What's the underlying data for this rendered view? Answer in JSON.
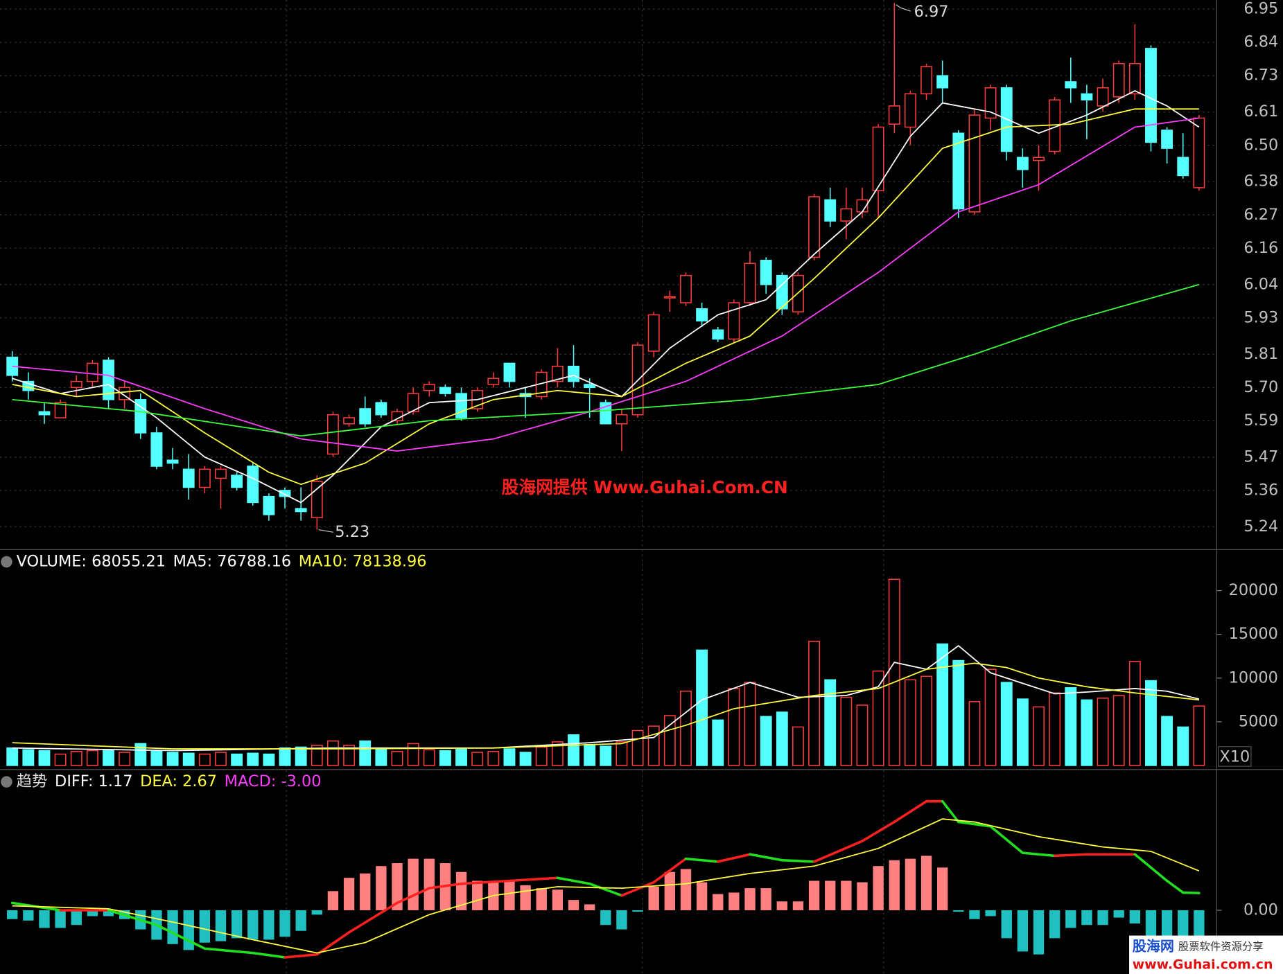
{
  "chart_data": [
    {
      "type": "candlestick",
      "open": [
        5.8,
        5.72,
        5.62,
        5.6,
        5.7,
        5.72,
        5.79,
        5.66,
        5.66,
        5.55,
        5.46,
        5.43,
        5.37,
        5.4,
        5.41,
        5.44,
        5.34,
        5.36,
        5.3,
        5.27,
        5.48,
        5.58,
        5.63,
        5.65,
        5.59,
        5.62,
        5.69,
        5.7,
        5.68,
        5.63,
        5.71,
        5.78,
        5.68,
        5.67,
        5.72,
        5.77,
        5.71,
        5.65,
        5.58,
        5.61,
        5.82,
        6.0,
        5.98,
        5.96,
        5.89,
        5.86,
        5.98,
        6.12,
        6.07,
        5.95,
        6.13,
        6.32,
        6.25,
        6.28,
        6.35,
        6.57,
        6.56,
        6.67,
        6.73,
        6.54,
        6.28,
        6.59,
        6.69,
        6.46,
        6.45,
        6.48,
        6.71,
        6.67,
        6.63,
        6.66,
        6.67,
        6.82,
        6.55,
        6.46,
        6.36
      ],
      "close": [
        5.74,
        5.69,
        5.61,
        5.65,
        5.72,
        5.78,
        5.66,
        5.7,
        5.55,
        5.44,
        5.45,
        5.37,
        5.43,
        5.43,
        5.37,
        5.32,
        5.28,
        5.34,
        5.29,
        5.39,
        5.61,
        5.6,
        5.58,
        5.61,
        5.62,
        5.68,
        5.71,
        5.68,
        5.6,
        5.69,
        5.73,
        5.72,
        5.67,
        5.75,
        5.77,
        5.72,
        5.7,
        5.58,
        5.61,
        5.84,
        5.94,
        6.0,
        6.07,
        5.92,
        5.86,
        5.98,
        6.11,
        6.04,
        5.96,
        6.07,
        6.33,
        6.25,
        6.29,
        6.32,
        6.56,
        6.63,
        6.67,
        6.76,
        6.69,
        6.29,
        6.6,
        6.69,
        6.48,
        6.42,
        6.46,
        6.65,
        6.69,
        6.65,
        6.69,
        6.77,
        6.77,
        6.51,
        6.49,
        6.4,
        6.59
      ],
      "high": [
        5.82,
        5.75,
        5.65,
        5.66,
        5.74,
        5.79,
        5.8,
        5.72,
        5.68,
        5.57,
        5.5,
        5.48,
        5.44,
        5.44,
        5.42,
        5.45,
        5.35,
        5.37,
        5.37,
        5.41,
        5.62,
        5.61,
        5.67,
        5.66,
        5.63,
        5.7,
        5.72,
        5.71,
        5.7,
        5.7,
        5.75,
        5.78,
        5.7,
        5.76,
        5.83,
        5.84,
        5.73,
        5.66,
        5.63,
        5.85,
        5.95,
        6.02,
        6.08,
        5.98,
        5.9,
        5.99,
        6.15,
        6.13,
        6.08,
        6.08,
        6.34,
        6.36,
        6.36,
        6.36,
        6.57,
        6.97,
        6.68,
        6.77,
        6.78,
        6.55,
        6.62,
        6.7,
        6.7,
        6.49,
        6.5,
        6.66,
        6.79,
        6.7,
        6.72,
        6.78,
        6.9,
        6.83,
        6.56,
        6.54,
        6.6
      ],
      "low": [
        5.72,
        5.66,
        5.58,
        5.6,
        5.67,
        5.7,
        5.63,
        5.63,
        5.53,
        5.43,
        5.43,
        5.33,
        5.35,
        5.3,
        5.36,
        5.31,
        5.26,
        5.3,
        5.26,
        5.23,
        5.47,
        5.57,
        5.57,
        5.6,
        5.58,
        5.61,
        5.67,
        5.67,
        5.59,
        5.62,
        5.7,
        5.7,
        5.6,
        5.66,
        5.7,
        5.7,
        5.6,
        5.58,
        5.49,
        5.6,
        5.8,
        5.95,
        5.97,
        5.9,
        5.85,
        5.85,
        5.97,
        6.01,
        5.94,
        5.94,
        6.12,
        6.23,
        6.19,
        6.26,
        6.26,
        6.54,
        6.5,
        6.65,
        6.64,
        6.26,
        6.27,
        6.55,
        6.45,
        6.36,
        6.35,
        6.47,
        6.64,
        6.52,
        6.61,
        6.64,
        6.65,
        6.48,
        6.44,
        6.39,
        6.35
      ],
      "up_color": "#ff3c3c",
      "down_color": "#54ffff",
      "ylim": [
        5.17,
        6.98
      ],
      "yticks": [
        6.95,
        6.84,
        6.73,
        6.61,
        {
          "value": 6.5,
          "label": "6.50"
        },
        6.38,
        6.27,
        6.16,
        6.04,
        5.93,
        5.81,
        {
          "value": 5.7,
          "label": "5.70"
        },
        5.59,
        5.47,
        5.36,
        5.24
      ],
      "grid": true,
      "high_label": "6.97",
      "low_label": "5.23",
      "series": [
        {
          "color": "#ffffff",
          "x": [
            0,
            3,
            6,
            9,
            12,
            15,
            18,
            20,
            23,
            26,
            29,
            32,
            35,
            38,
            41,
            44,
            47,
            50,
            53,
            56,
            58,
            61,
            64,
            67,
            70,
            72,
            74
          ],
          "values": [
            5.73,
            5.68,
            5.71,
            5.6,
            5.47,
            5.4,
            5.32,
            5.41,
            5.57,
            5.65,
            5.66,
            5.7,
            5.74,
            5.67,
            5.83,
            5.94,
            5.99,
            6.14,
            6.28,
            6.53,
            6.64,
            6.61,
            6.54,
            6.6,
            6.68,
            6.63,
            6.56
          ]
        },
        {
          "color": "#ffff3c",
          "x": [
            0,
            4,
            8,
            12,
            16,
            18,
            22,
            26,
            30,
            34,
            38,
            42,
            46,
            50,
            54,
            58,
            62,
            66,
            70,
            74
          ],
          "values": [
            5.71,
            5.67,
            5.69,
            5.55,
            5.42,
            5.38,
            5.45,
            5.58,
            5.66,
            5.69,
            5.67,
            5.78,
            5.87,
            6.06,
            6.26,
            6.49,
            6.56,
            6.57,
            6.62,
            6.62
          ]
        },
        {
          "color": "#ff3cff",
          "x": [
            0,
            6,
            12,
            18,
            24,
            30,
            36,
            42,
            48,
            54,
            59,
            64,
            70,
            74
          ],
          "values": [
            5.77,
            5.74,
            5.63,
            5.53,
            5.49,
            5.53,
            5.62,
            5.72,
            5.87,
            6.08,
            6.28,
            6.37,
            6.56,
            6.59
          ]
        },
        {
          "color": "#3cff3c",
          "x": [
            0,
            8,
            18,
            26,
            36,
            46,
            54,
            60,
            66,
            74
          ],
          "values": [
            5.66,
            5.62,
            5.54,
            5.59,
            5.62,
            5.66,
            5.71,
            5.81,
            5.92,
            6.04
          ]
        }
      ],
      "watermark": "股海网提供 Www.Guhai.Com.CN"
    },
    {
      "type": "bar",
      "name": "VOLUME: 68055.21",
      "values": [
        2000,
        1800,
        1700,
        1300,
        1600,
        1700,
        1800,
        1500,
        2500,
        1600,
        1500,
        1400,
        1300,
        1500,
        1300,
        1400,
        1300,
        2000,
        2100,
        2300,
        2800,
        2300,
        2800,
        2000,
        1600,
        2500,
        1800,
        1700,
        1900,
        1500,
        1600,
        1900,
        1500,
        2100,
        2700,
        3500,
        2400,
        2200,
        2700,
        4000,
        4500,
        5700,
        8500,
        13200,
        5200,
        8800,
        9500,
        5600,
        6100,
        4400,
        14200,
        9800,
        7800,
        6900,
        10800,
        21300,
        9800,
        10200,
        13900,
        12000,
        7300,
        11000,
        9500,
        7600,
        6700,
        8300,
        8900,
        7500,
        7700,
        8000,
        11900,
        9700,
        5600,
        4400,
        6800
      ],
      "ylim": [
        0,
        24700
      ],
      "yticks": [
        5000,
        10000,
        15000,
        20000
      ],
      "unit_label": "X10",
      "series": [
        {
          "name": "MA5: 76788.16",
          "color": "#ffffff",
          "x": [
            0,
            10,
            20,
            30,
            36,
            40,
            43,
            46,
            49,
            52,
            54,
            55,
            57,
            59,
            61,
            63,
            65,
            67,
            70,
            72,
            74
          ],
          "values": [
            2000,
            1700,
            2000,
            2000,
            2600,
            3200,
            7500,
            9500,
            7800,
            8000,
            9000,
            11800,
            11000,
            13700,
            10600,
            9400,
            8200,
            8400,
            8800,
            8500,
            7600
          ]
        },
        {
          "name": "MA10: 78138.96",
          "color": "#ffff3c",
          "x": [
            0,
            10,
            20,
            30,
            38,
            42,
            45,
            50,
            54,
            57,
            60,
            62,
            64,
            67,
            70,
            74
          ],
          "values": [
            2600,
            1900,
            1900,
            2000,
            2500,
            4600,
            6500,
            8000,
            8800,
            11000,
            11700,
            11200,
            10000,
            9000,
            8300,
            7500
          ]
        }
      ]
    },
    {
      "type": "bar",
      "title": "趋势",
      "name": "MACD: -3.00",
      "color": "#ff3cff",
      "values": [
        -0.6,
        -0.7,
        -1.2,
        -1.2,
        -1.0,
        -0.4,
        -0.4,
        -0.6,
        -1.3,
        -2.0,
        -2.3,
        -2.7,
        -2.2,
        -2.1,
        -1.9,
        -2.0,
        -2.0,
        -1.8,
        -1.4,
        -0.3,
        1.3,
        2.2,
        2.5,
        3.0,
        3.2,
        3.5,
        3.5,
        3.2,
        2.6,
        2.0,
        2.0,
        2.0,
        1.7,
        1.5,
        1.4,
        0.7,
        0.4,
        -1.0,
        -1.3,
        -0.1,
        1.6,
        2.6,
        2.8,
        1.9,
        1.1,
        1.2,
        1.5,
        1.5,
        0.6,
        0.6,
        2.0,
        2.0,
        2.0,
        1.9,
        3.0,
        3.4,
        3.5,
        3.7,
        2.9,
        -0.1,
        -0.6,
        -0.4,
        -1.9,
        -2.8,
        -3.0,
        -1.9,
        -1.2,
        -1.0,
        -1.0,
        -0.5,
        -0.9,
        -2.0,
        -2.5,
        -2.8,
        -3.0
      ],
      "pos_color": "#ff8080",
      "neg_color": "#20c0c0",
      "ylim": [
        -4.33,
        9.39
      ],
      "yticks": [
        {
          "value": 0,
          "label": "0.00"
        }
      ],
      "series": [
        {
          "name": "DIFF: 1.17",
          "color": "#ffffff",
          "up_color": "#ff2020",
          "down_color": "#20e020",
          "x": [
            0,
            3,
            6,
            9,
            12,
            15,
            17,
            19,
            21,
            24,
            26,
            28,
            31,
            34,
            36,
            38,
            40,
            42,
            44,
            46,
            48,
            50,
            53,
            55,
            57,
            58,
            59,
            61,
            63,
            65,
            67,
            70,
            72,
            73,
            74
          ],
          "values": [
            0.5,
            0.0,
            0.0,
            -1.0,
            -2.6,
            -2.9,
            -3.2,
            -3.0,
            -1.5,
            0.5,
            1.5,
            1.8,
            2.0,
            2.2,
            1.8,
            1.0,
            1.9,
            3.5,
            3.3,
            3.8,
            3.4,
            3.3,
            4.7,
            6.0,
            7.4,
            7.4,
            6.0,
            5.7,
            3.9,
            3.7,
            3.8,
            3.8,
            2.0,
            1.2,
            1.17
          ]
        },
        {
          "name": "DEA: 2.67",
          "color": "#ffff3c",
          "x": [
            0,
            6,
            10,
            15,
            19,
            22,
            26,
            30,
            34,
            38,
            42,
            46,
            50,
            54,
            58,
            60,
            64,
            68,
            71,
            74
          ],
          "values": [
            0.3,
            0.1,
            -0.8,
            -2.0,
            -2.9,
            -2.2,
            -0.3,
            1.0,
            1.6,
            1.5,
            1.8,
            2.5,
            3.0,
            4.2,
            6.2,
            6.0,
            5.0,
            4.3,
            4.0,
            2.67
          ]
        }
      ]
    }
  ],
  "logo": {
    "brand": "股海网",
    "tagline": "股票软件资源分享",
    "url": "www.Guhai.com.cn"
  }
}
